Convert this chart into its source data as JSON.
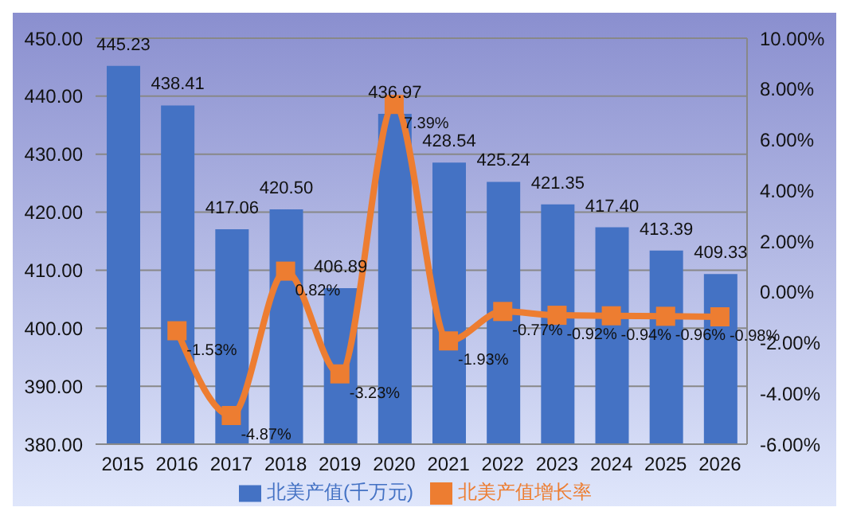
{
  "chart_data": {
    "type": "bar",
    "categories": [
      "2015",
      "2016",
      "2017",
      "2018",
      "2019",
      "2020",
      "2021",
      "2022",
      "2023",
      "2024",
      "2025",
      "2026"
    ],
    "series": [
      {
        "name": "北美产值(千万元)",
        "color": "#4472c4",
        "values": [
          445.23,
          438.41,
          417.06,
          420.5,
          406.89,
          436.97,
          428.54,
          425.24,
          421.35,
          417.4,
          413.39,
          409.33
        ],
        "value_labels": [
          "445.23",
          "438.41",
          "417.06",
          "420.50",
          "406.89",
          "436.97",
          "428.54",
          "425.24",
          "421.35",
          "417.40",
          "413.39",
          "409.33"
        ]
      },
      {
        "name": "北美产值增长率",
        "type": "line",
        "axis": "y2",
        "color": "#ed7d31",
        "values": [
          null,
          -1.53,
          -4.87,
          0.82,
          -3.23,
          7.39,
          -1.93,
          -0.77,
          -0.92,
          -0.94,
          -0.96,
          -0.98
        ],
        "value_labels": [
          null,
          "-1.53%",
          "-4.87%",
          "0.82%",
          "-3.23%",
          "7.39%",
          "-1.93%",
          "-0.77%",
          "-0.92%",
          "-0.94%",
          "-0.96%",
          "-0.98%"
        ]
      }
    ],
    "ylim": [
      380,
      450
    ],
    "yticks": [
      {
        "value": 380,
        "label": "380.00"
      },
      {
        "value": 390,
        "label": "390.00"
      },
      {
        "value": 400,
        "label": "400.00"
      },
      {
        "value": 410,
        "label": "410.00"
      },
      {
        "value": 420,
        "label": "420.00"
      },
      {
        "value": 430,
        "label": "430.00"
      },
      {
        "value": 440,
        "label": "440.00"
      },
      {
        "value": 450,
        "label": "450.00"
      }
    ],
    "y2lim": [
      -6,
      10
    ],
    "y2ticks": [
      {
        "value": -6,
        "label": "-6.00%"
      },
      {
        "value": -4,
        "label": "-4.00%"
      },
      {
        "value": -2,
        "label": "-2.00%"
      },
      {
        "value": 0,
        "label": "0.00%"
      },
      {
        "value": 2,
        "label": "2.00%"
      },
      {
        "value": 4,
        "label": "4.00%"
      },
      {
        "value": 6,
        "label": "6.00%"
      },
      {
        "value": 8,
        "label": "8.00%"
      },
      {
        "value": 10,
        "label": "10.00%"
      }
    ],
    "grid": "y",
    "legend": "bottom",
    "marker": "square",
    "line_style": "solid"
  }
}
